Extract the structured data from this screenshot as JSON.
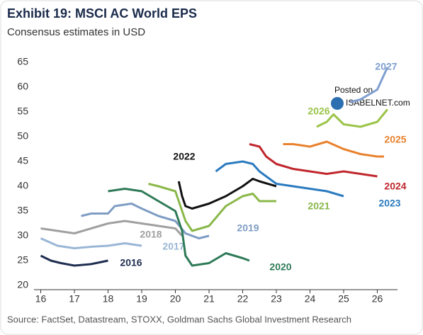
{
  "chart_data": {
    "type": "line",
    "title": "Exhibit 19: MSCI AC World EPS",
    "subtitle": "Consensus estimates in USD",
    "source": "Source: FactSet, Datastream, STOXX, Goldman Sachs Global Investment Research",
    "annotations": [
      "Posted on",
      "ISABELNET.com"
    ],
    "xlim": [
      15.8,
      26.6
    ],
    "xticks": [
      16,
      17,
      18,
      19,
      20,
      21,
      22,
      23,
      24,
      25,
      26
    ],
    "ylim": [
      20,
      65
    ],
    "yticks": [
      20,
      25,
      30,
      35,
      40,
      45,
      50,
      55,
      60,
      65
    ],
    "series": [
      {
        "name": "2016",
        "color": "#1f2d50",
        "x": [
          16.0,
          16.3,
          16.6,
          17.0,
          17.5,
          18.0
        ],
        "values": [
          26,
          25,
          24.5,
          24,
          24.3,
          25
        ]
      },
      {
        "name": "2017",
        "color": "#9ab6d6",
        "x": [
          16.0,
          16.5,
          17.0,
          17.5,
          18.0,
          18.5,
          19.0
        ],
        "values": [
          29.5,
          28,
          27.5,
          27.8,
          28,
          28.5,
          28
        ]
      },
      {
        "name": "2018",
        "color": "#a0a0a0",
        "x": [
          16.0,
          16.5,
          17.0,
          17.5,
          18.0,
          18.5,
          19.0,
          19.5,
          20.0,
          20.2
        ],
        "values": [
          31.5,
          31,
          30.5,
          31.5,
          32.5,
          33,
          32.5,
          32,
          31.5,
          30
        ]
      },
      {
        "name": "2019",
        "color": "#7f9cc4",
        "x": [
          17.2,
          17.5,
          18.0,
          18.2,
          18.7,
          19.0,
          19.5,
          20.0,
          20.3,
          20.7,
          21.0
        ],
        "values": [
          34,
          34.5,
          34.5,
          36,
          36.5,
          35.5,
          34,
          33,
          30.5,
          29.5,
          30
        ]
      },
      {
        "name": "2020",
        "color": "#2e7a58",
        "x": [
          18.0,
          18.5,
          19.0,
          19.5,
          20.0,
          20.2,
          20.3,
          20.5,
          21.0,
          21.5,
          22.0,
          22.2
        ],
        "values": [
          39,
          39.5,
          39,
          37,
          35,
          31,
          26,
          24,
          24.5,
          26.5,
          25.5,
          25
        ]
      },
      {
        "name": "2021",
        "color": "#8ab84a",
        "x": [
          19.2,
          19.5,
          20.0,
          20.3,
          20.5,
          21.0,
          21.5,
          22.0,
          22.3,
          22.5,
          23.0
        ],
        "values": [
          40.5,
          40,
          39,
          33,
          31,
          32,
          36,
          38,
          38.5,
          37,
          37
        ]
      },
      {
        "name": "2022",
        "color": "#111111",
        "x": [
          20.1,
          20.2,
          20.3,
          20.5,
          21.0,
          21.5,
          22.0,
          22.3,
          22.5,
          23.0
        ],
        "values": [
          41,
          38,
          36,
          35.5,
          36.5,
          38,
          40,
          41.5,
          41,
          40
        ]
      },
      {
        "name": "2023",
        "color": "#2b7bbf",
        "x": [
          21.2,
          21.5,
          22.0,
          22.3,
          22.5,
          23.0,
          23.5,
          24.0,
          24.5,
          25.0
        ],
        "values": [
          43,
          44.5,
          45,
          44.5,
          43,
          40.5,
          40,
          39.5,
          39,
          38
        ]
      },
      {
        "name": "2024",
        "color": "#c0272d",
        "x": [
          22.2,
          22.5,
          22.7,
          23.0,
          23.5,
          24.0,
          24.5,
          25.0,
          25.5,
          26.0
        ],
        "values": [
          48.5,
          48,
          46,
          44.5,
          43.5,
          43,
          42.5,
          43,
          42.5,
          42
        ]
      },
      {
        "name": "2025",
        "color": "#e8822e",
        "x": [
          23.2,
          23.5,
          24.0,
          24.5,
          25.0,
          25.5,
          26.0,
          26.2
        ],
        "values": [
          48.5,
          48.5,
          48,
          49,
          47.5,
          46.5,
          46,
          46
        ]
      },
      {
        "name": "2026",
        "color": "#9cc44a",
        "x": [
          24.2,
          24.5,
          24.7,
          25.0,
          25.5,
          26.0,
          26.3
        ],
        "values": [
          52,
          53,
          54.5,
          52.5,
          52,
          53,
          55.5
        ]
      },
      {
        "name": "2027",
        "color": "#7f9fd0",
        "x": [
          25.2,
          25.5,
          26.0,
          26.3
        ],
        "values": [
          57,
          57.5,
          59.5,
          64
        ]
      }
    ]
  }
}
